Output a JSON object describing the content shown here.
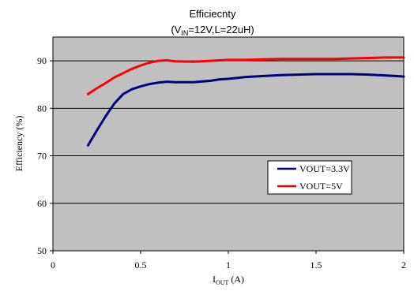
{
  "chart_data": {
    "type": "line",
    "title": "Efficiecnty",
    "subtitle": {
      "prefix": "(V",
      "subscript": "IN",
      "suffix": "=12V,L=22uH)"
    },
    "xlabel": {
      "prefix": "I",
      "subscript": "OUT",
      "suffix": " (A)"
    },
    "ylabel": "Efficiency (%)",
    "xlim": [
      0,
      2
    ],
    "ylim": [
      50,
      95
    ],
    "xticks": [
      {
        "value": 0,
        "label": "0"
      },
      {
        "value": 0.5,
        "label": "0.5"
      },
      {
        "value": 1,
        "label": "1"
      },
      {
        "value": 1.5,
        "label": "1.5"
      },
      {
        "value": 2,
        "label": "2"
      }
    ],
    "yticks": [
      {
        "value": 50,
        "label": "50"
      },
      {
        "value": 60,
        "label": "60"
      },
      {
        "value": 70,
        "label": "70"
      },
      {
        "value": 80,
        "label": "80"
      },
      {
        "value": 90,
        "label": "90"
      }
    ],
    "grid": "horizontal",
    "legend_position": "lower-right",
    "plot_background": "#c0c0c0",
    "series": [
      {
        "name": "VOUT=3.3V",
        "color": "#000080",
        "x": [
          0.2,
          0.25,
          0.3,
          0.35,
          0.4,
          0.45,
          0.5,
          0.55,
          0.6,
          0.65,
          0.7,
          0.8,
          0.9,
          0.95,
          1.0,
          1.1,
          1.2,
          1.3,
          1.4,
          1.5,
          1.6,
          1.7,
          1.8,
          1.9,
          2.0
        ],
        "y": [
          72.2,
          75.3,
          78.3,
          81.0,
          83.0,
          84.0,
          84.6,
          85.1,
          85.4,
          85.6,
          85.5,
          85.5,
          85.8,
          86.1,
          86.2,
          86.6,
          86.8,
          87.0,
          87.1,
          87.2,
          87.2,
          87.2,
          87.1,
          86.9,
          86.7
        ]
      },
      {
        "name": "VOUT=5V",
        "color": "#ff0000",
        "x": [
          0.2,
          0.25,
          0.3,
          0.35,
          0.4,
          0.45,
          0.5,
          0.55,
          0.6,
          0.65,
          0.7,
          0.8,
          0.9,
          1.0,
          1.1,
          1.2,
          1.3,
          1.4,
          1.5,
          1.6,
          1.7,
          1.8,
          1.9,
          2.0
        ],
        "y": [
          83.0,
          84.2,
          85.3,
          86.5,
          87.4,
          88.3,
          89.0,
          89.6,
          90.0,
          90.1,
          89.9,
          89.8,
          90.0,
          90.2,
          90.2,
          90.3,
          90.4,
          90.4,
          90.4,
          90.4,
          90.5,
          90.6,
          90.7,
          90.7
        ]
      }
    ]
  }
}
